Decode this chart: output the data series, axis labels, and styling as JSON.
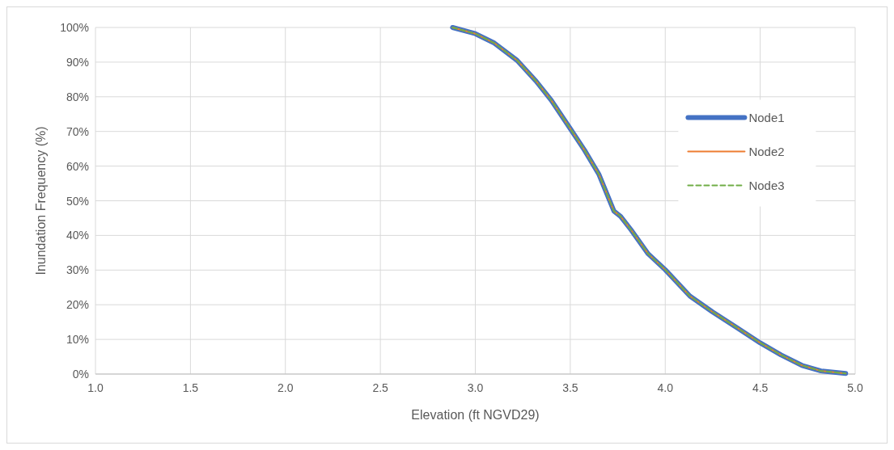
{
  "chart_data": {
    "type": "line",
    "xlabel": "Elevation (ft NGVD29)",
    "ylabel": "Inundation Frequency (%)",
    "x": [
      2.88,
      3.0,
      3.1,
      3.22,
      3.32,
      3.4,
      3.5,
      3.575,
      3.65,
      3.73,
      3.765,
      3.82,
      3.91,
      4.0,
      4.13,
      4.25,
      4.38,
      4.5,
      4.61,
      4.72,
      4.82,
      4.95
    ],
    "series": [
      {
        "name": "Node1",
        "color": "#4472c4",
        "values": [
          100,
          98.2,
          95.5,
          90.5,
          84.5,
          79,
          70.8,
          64.6,
          57.7,
          47,
          45.5,
          41.6,
          34.7,
          30.1,
          22.5,
          17.9,
          13.3,
          9,
          5.5,
          2.5,
          0.9,
          0.2
        ]
      },
      {
        "name": "Node2",
        "color": "#ed7d31",
        "values": [
          100,
          98.2,
          95.5,
          90.5,
          84.5,
          79,
          70.8,
          64.6,
          57.7,
          47,
          45.5,
          41.6,
          34.7,
          30.1,
          22.5,
          17.9,
          13.3,
          9,
          5.5,
          2.5,
          0.9,
          0.2
        ]
      },
      {
        "name": "Node3",
        "color": "#70ad47",
        "line_style": "dashed",
        "values": [
          100,
          98.2,
          95.5,
          90.5,
          84.5,
          79,
          70.8,
          64.6,
          57.7,
          47,
          45.5,
          41.6,
          34.7,
          30.1,
          22.5,
          17.9,
          13.3,
          9,
          5.5,
          2.5,
          0.9,
          0.2
        ]
      }
    ],
    "xlim": [
      1,
      5
    ],
    "xticks": [
      {
        "value": 1,
        "label": "1.0"
      },
      {
        "value": 1.5,
        "label": "1.5"
      },
      {
        "value": 2,
        "label": "2.0"
      },
      {
        "value": 2.5,
        "label": "2.5"
      },
      {
        "value": 3,
        "label": "3.0"
      },
      {
        "value": 3.5,
        "label": "3.5"
      },
      {
        "value": 4,
        "label": "4.0"
      },
      {
        "value": 4.5,
        "label": "4.5"
      },
      {
        "value": 5,
        "label": "5.0"
      }
    ],
    "ylim": [
      0,
      100
    ],
    "yticks": [
      {
        "value": 0,
        "label": "0%"
      },
      {
        "value": 10,
        "label": "10%"
      },
      {
        "value": 20,
        "label": "20%"
      },
      {
        "value": 30,
        "label": "30%"
      },
      {
        "value": 40,
        "label": "40%"
      },
      {
        "value": 50,
        "label": "50%"
      },
      {
        "value": 60,
        "label": "60%"
      },
      {
        "value": 70,
        "label": "70%"
      },
      {
        "value": 80,
        "label": "80%"
      },
      {
        "value": 90,
        "label": "90%"
      },
      {
        "value": 100,
        "label": "100%"
      }
    ],
    "grid": true,
    "legend": "right"
  }
}
